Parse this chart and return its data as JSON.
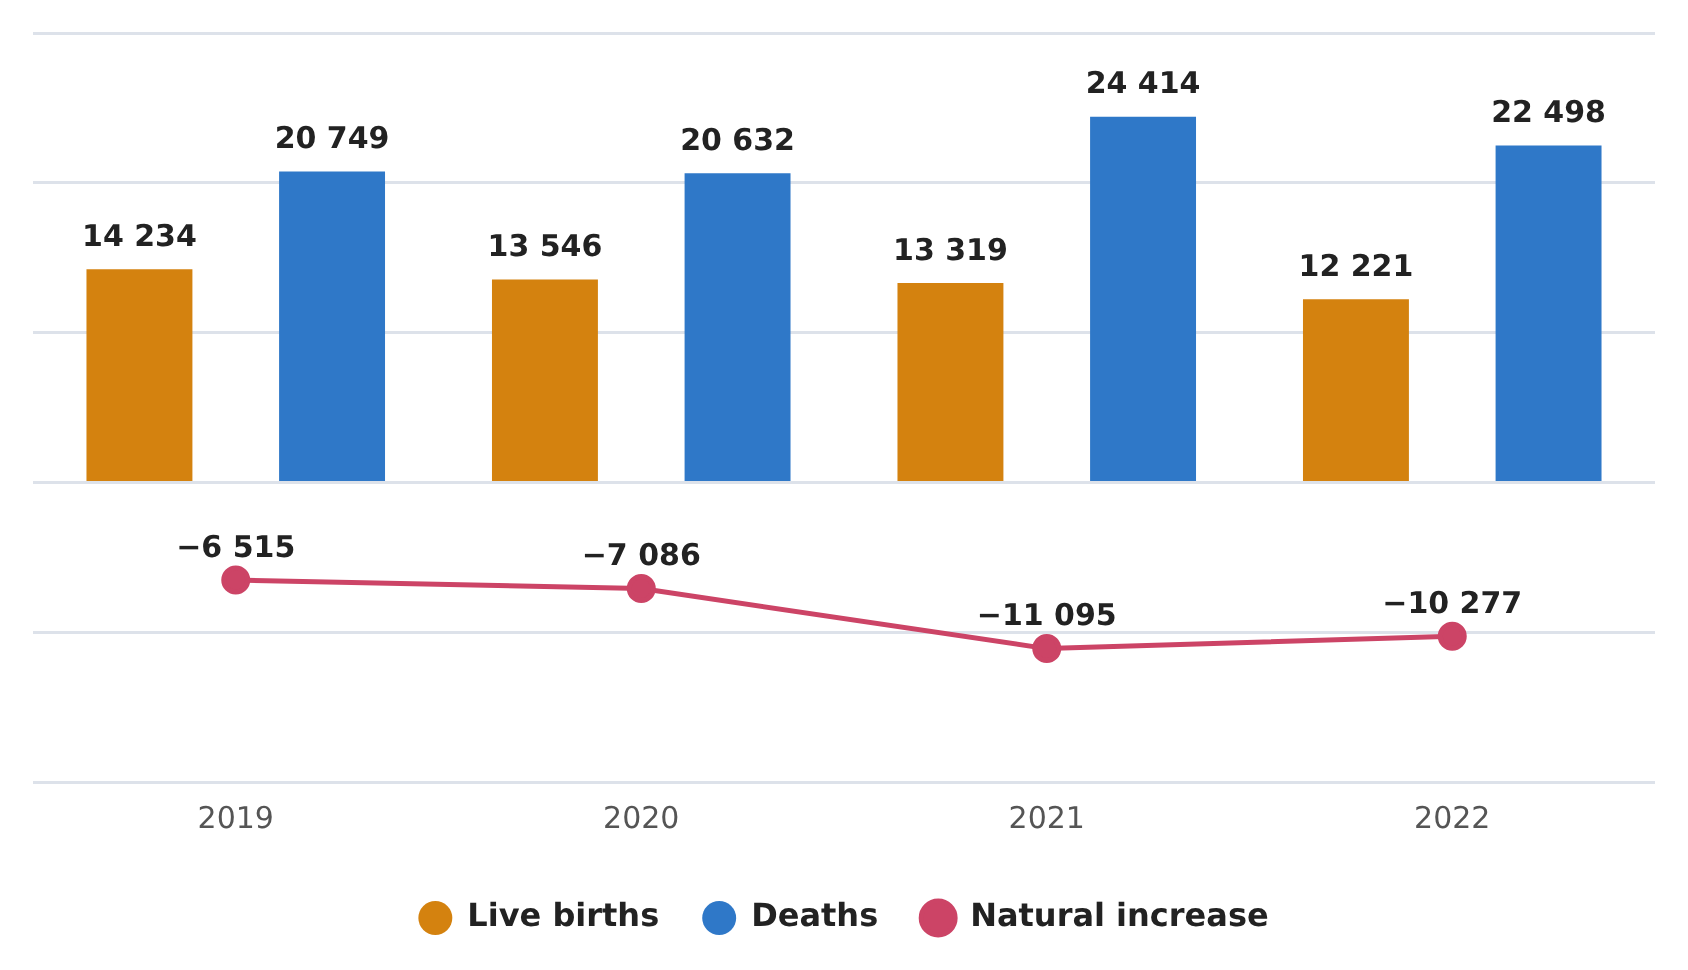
{
  "chart_data": {
    "type": "bar",
    "categories": [
      "2019",
      "2020",
      "2021",
      "2022"
    ],
    "series": [
      {
        "name": "Live births",
        "color": "#d4820f",
        "values": [
          14234,
          13546,
          13319,
          12221
        ],
        "value_labels": [
          "14 234",
          "13 546",
          "13 319",
          "12 221"
        ]
      },
      {
        "name": "Deaths",
        "color": "#2f78c8",
        "values": [
          20749,
          20632,
          24414,
          22498
        ],
        "value_labels": [
          "20 749",
          "20 632",
          "24 414",
          "22 498"
        ]
      },
      {
        "name": "Natural increase",
        "type": "line",
        "color": "#cc4466",
        "values": [
          -6515,
          -7086,
          -11095,
          -10277
        ],
        "value_labels": [
          "−6 515",
          "−7 086",
          "−11 095",
          "−10 277"
        ],
        "marker": "circle"
      }
    ],
    "ylim": [
      -20000,
      30000
    ],
    "tick_labels": "x",
    "grid": "y",
    "legend": "bottom"
  }
}
